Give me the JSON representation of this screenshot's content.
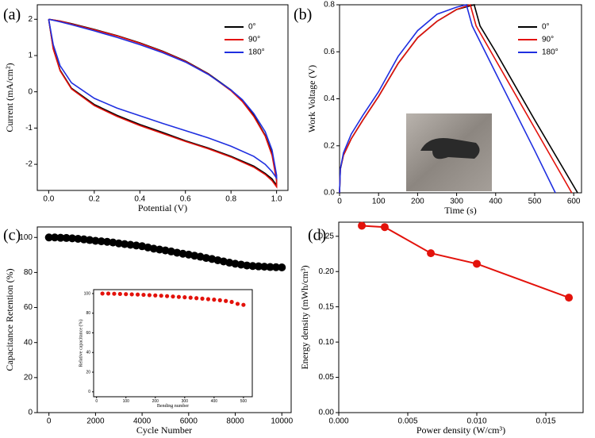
{
  "chart_data": [
    {
      "type": "line",
      "panel_label": "(a)",
      "xlabel": "Potential (V)",
      "ylabel": "Current (mA/cm²)",
      "xlim": [
        -0.05,
        1.05
      ],
      "ylim": [
        -2.72,
        2.4
      ],
      "xticks": [
        {
          "value": 0,
          "label": "0.0"
        },
        {
          "value": 0.2,
          "label": "0.2"
        },
        {
          "value": 0.4,
          "label": "0.4"
        },
        {
          "value": 0.6,
          "label": "0.6"
        },
        {
          "value": 0.8,
          "label": "0.8"
        },
        {
          "value": 1,
          "label": "1.0"
        }
      ],
      "yticks": [
        -2,
        -1,
        0,
        1,
        2
      ],
      "legend": "upper right",
      "series": [
        {
          "name": "0°",
          "color": "#000000",
          "x": [
            0,
            0.05,
            0.1,
            0.2,
            0.3,
            0.4,
            0.5,
            0.6,
            0.7,
            0.8,
            0.85,
            0.9,
            0.95,
            0.98,
            1.0,
            1.0,
            0.98,
            0.95,
            0.9,
            0.8,
            0.7,
            0.6,
            0.5,
            0.4,
            0.3,
            0.2,
            0.1,
            0.05,
            0.02,
            0
          ],
          "values": [
            2.0,
            1.95,
            1.88,
            1.72,
            1.55,
            1.35,
            1.12,
            0.85,
            0.5,
            0.05,
            -0.25,
            -0.65,
            -1.2,
            -1.7,
            -2.4,
            -2.58,
            -2.4,
            -2.25,
            -2.05,
            -1.78,
            -1.55,
            -1.35,
            -1.12,
            -0.9,
            -0.65,
            -0.35,
            0.1,
            0.6,
            1.2,
            2.0
          ]
        },
        {
          "name": "90°",
          "color": "#e3120b",
          "x": [
            0,
            0.05,
            0.1,
            0.2,
            0.3,
            0.4,
            0.5,
            0.6,
            0.7,
            0.8,
            0.85,
            0.9,
            0.95,
            0.98,
            1.0,
            1.0,
            0.98,
            0.95,
            0.9,
            0.8,
            0.7,
            0.6,
            0.5,
            0.4,
            0.3,
            0.2,
            0.1,
            0.05,
            0.02,
            0
          ],
          "values": [
            2.0,
            1.95,
            1.87,
            1.71,
            1.54,
            1.34,
            1.11,
            0.84,
            0.49,
            0.03,
            -0.27,
            -0.68,
            -1.22,
            -1.75,
            -2.45,
            -2.62,
            -2.45,
            -2.28,
            -2.08,
            -1.8,
            -1.57,
            -1.37,
            -1.15,
            -0.93,
            -0.68,
            -0.38,
            0.08,
            0.58,
            1.18,
            2.0
          ]
        },
        {
          "name": "180°",
          "color": "#1f2fe0",
          "x": [
            0,
            0.05,
            0.1,
            0.2,
            0.3,
            0.4,
            0.5,
            0.6,
            0.7,
            0.8,
            0.85,
            0.9,
            0.95,
            0.98,
            1.0,
            1.0,
            0.98,
            0.95,
            0.9,
            0.8,
            0.7,
            0.6,
            0.5,
            0.4,
            0.3,
            0.2,
            0.1,
            0.05,
            0.02,
            0
          ],
          "values": [
            2.0,
            1.93,
            1.85,
            1.68,
            1.5,
            1.3,
            1.08,
            0.82,
            0.48,
            0.05,
            -0.22,
            -0.6,
            -1.1,
            -1.6,
            -2.3,
            -2.38,
            -2.2,
            -2.0,
            -1.78,
            -1.5,
            -1.27,
            -1.07,
            -0.87,
            -0.66,
            -0.45,
            -0.18,
            0.25,
            0.72,
            1.3,
            2.0
          ]
        }
      ]
    },
    {
      "type": "line",
      "panel_label": "(b)",
      "xlabel": "Time (s)",
      "ylabel": "Work Voltage (V)",
      "xlim": [
        0,
        620
      ],
      "ylim": [
        0,
        0.8
      ],
      "xticks": [
        0,
        100,
        200,
        300,
        400,
        500,
        600
      ],
      "yticks": [
        {
          "value": 0,
          "label": "0.0"
        },
        {
          "value": 0.2,
          "label": "0.2"
        },
        {
          "value": 0.4,
          "label": "0.4"
        },
        {
          "value": 0.6,
          "label": "0.6"
        },
        {
          "value": 0.8,
          "label": "0.8"
        }
      ],
      "legend": "upper right",
      "series": [
        {
          "name": "0°",
          "color": "#000000",
          "x": [
            0,
            2,
            10,
            30,
            60,
            100,
            150,
            200,
            250,
            300,
            345,
            350,
            360,
            400,
            500,
            610
          ],
          "values": [
            0,
            0.1,
            0.16,
            0.23,
            0.31,
            0.41,
            0.55,
            0.66,
            0.73,
            0.78,
            0.8,
            0.77,
            0.71,
            0.6,
            0.31,
            0
          ]
        },
        {
          "name": "90°",
          "color": "#e3120b",
          "x": [
            0,
            2,
            10,
            30,
            60,
            100,
            150,
            200,
            250,
            300,
            335,
            340,
            350,
            400,
            500,
            595
          ],
          "values": [
            0,
            0.1,
            0.16,
            0.23,
            0.31,
            0.41,
            0.55,
            0.66,
            0.73,
            0.78,
            0.8,
            0.77,
            0.71,
            0.565,
            0.275,
            0
          ]
        },
        {
          "name": "180°",
          "color": "#1f2fe0",
          "x": [
            0,
            2,
            10,
            30,
            60,
            100,
            150,
            200,
            250,
            300,
            325,
            330,
            340,
            400,
            500,
            553
          ],
          "values": [
            0,
            0.1,
            0.17,
            0.25,
            0.33,
            0.43,
            0.58,
            0.69,
            0.76,
            0.79,
            0.8,
            0.77,
            0.71,
            0.51,
            0.18,
            0
          ]
        }
      ]
    },
    {
      "type": "scatter",
      "panel_label": "(c)",
      "xlabel": "Cycle Number",
      "ylabel": "Capacitance Retention (%)",
      "xlim": [
        -500,
        10400
      ],
      "ylim": [
        0,
        106
      ],
      "xticks": [
        0,
        2000,
        4000,
        6000,
        8000,
        10000
      ],
      "yticks": [
        0,
        20,
        40,
        60,
        80,
        100
      ],
      "series": [
        {
          "color": "#000000",
          "x": [
            0,
            250,
            500,
            750,
            1000,
            1250,
            1500,
            1750,
            2000,
            2250,
            2500,
            2750,
            3000,
            3250,
            3500,
            3750,
            4000,
            4250,
            4500,
            4750,
            5000,
            5250,
            5500,
            5750,
            6000,
            6250,
            6500,
            6750,
            7000,
            7250,
            7500,
            7750,
            8000,
            8250,
            8500,
            8750,
            9000,
            9250,
            9500,
            9750,
            10000
          ],
          "values": [
            100,
            100,
            99.8,
            99.7,
            99.5,
            99.2,
            98.9,
            98.5,
            98.1,
            97.8,
            97.5,
            97.1,
            96.6,
            96.2,
            95.8,
            95.4,
            95,
            94.3,
            93.6,
            93.1,
            92.6,
            92,
            91.3,
            90.7,
            90.2,
            89.6,
            89,
            88.3,
            87.7,
            87,
            86.3,
            85.6,
            85,
            84.5,
            84,
            83.7,
            83.5,
            83.3,
            83.1,
            83,
            82.9
          ]
        }
      ],
      "inset": {
        "type": "scatter",
        "xlabel": "Bending number",
        "ylabel": "Relative capacitance (%)",
        "xlim": [
          -10,
          530
        ],
        "ylim": [
          -5,
          104
        ],
        "xticks": [
          0,
          100,
          200,
          300,
          400,
          500
        ],
        "yticks": [
          0,
          20,
          40,
          60,
          80,
          100
        ],
        "series": [
          {
            "color": "#e3120b",
            "x": [
              20,
              40,
              60,
              80,
              100,
              120,
              140,
              160,
              180,
              200,
              220,
              240,
              260,
              280,
              300,
              320,
              340,
              360,
              380,
              400,
              420,
              440,
              460,
              480,
              500
            ],
            "values": [
              100,
              100,
              99.8,
              99.6,
              99.4,
              99.2,
              99,
              98.7,
              98.4,
              98.1,
              97.8,
              97.4,
              97,
              96.6,
              96.2,
              95.8,
              95.3,
              94.8,
              94.3,
              93.8,
              93.2,
              92.5,
              91.5,
              89.5,
              88.5
            ]
          }
        ]
      }
    },
    {
      "type": "line",
      "markers": true,
      "panel_label": "(d)",
      "xlabel": "Power density (W/cm³)",
      "ylabel": "Energy density (mWh/cm³)",
      "xlim": [
        0,
        0.0177
      ],
      "ylim": [
        0,
        0.27
      ],
      "xticks": [
        {
          "value": 0,
          "label": "0.000"
        },
        {
          "value": 0.005,
          "label": "0.005"
        },
        {
          "value": 0.01,
          "label": "0.010"
        },
        {
          "value": 0.015,
          "label": "0.015"
        }
      ],
      "yticks": [
        {
          "value": 0,
          "label": "0.00"
        },
        {
          "value": 0.05,
          "label": "0.05"
        },
        {
          "value": 0.1,
          "label": "0.10"
        },
        {
          "value": 0.15,
          "label": "0.15"
        },
        {
          "value": 0.2,
          "label": "0.20"
        },
        {
          "value": 0.25,
          "label": "0.25"
        }
      ],
      "series": [
        {
          "color": "#e3120b",
          "x": [
            0.00167,
            0.00333,
            0.00667,
            0.01,
            0.01667
          ],
          "values": [
            0.265,
            0.263,
            0.226,
            0.211,
            0.163
          ]
        }
      ]
    }
  ]
}
